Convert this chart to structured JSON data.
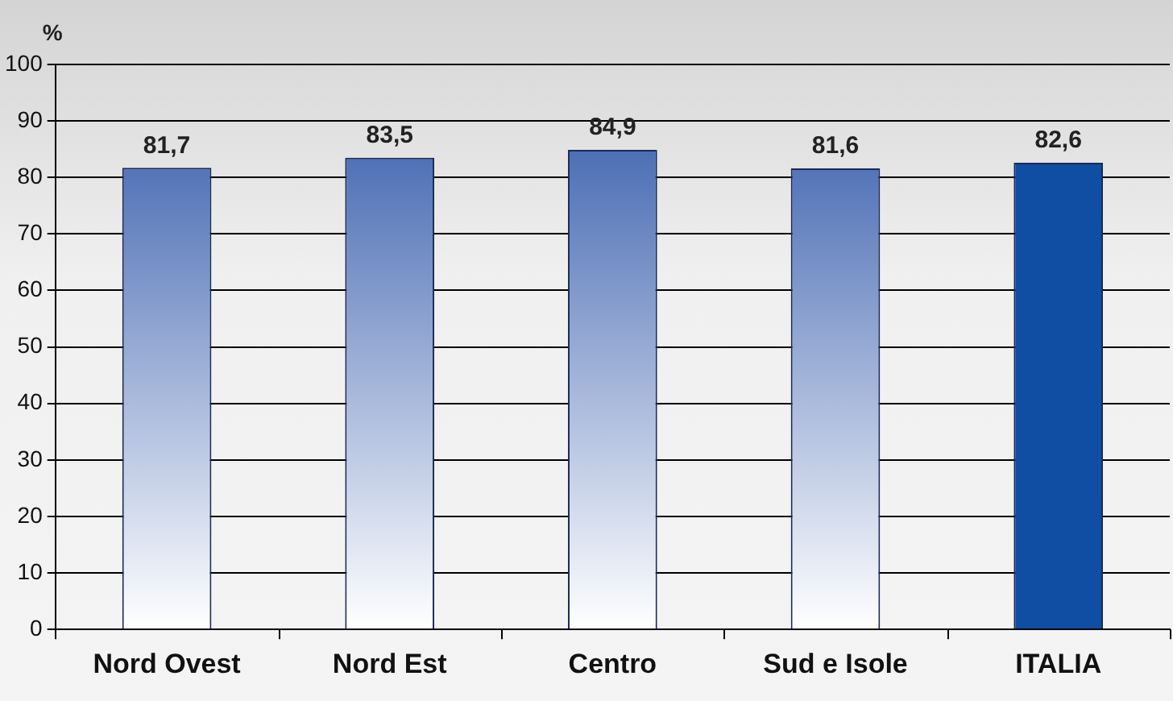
{
  "chart_data": {
    "type": "bar",
    "ylabel": "%",
    "categories": [
      "Nord Ovest",
      "Nord Est",
      "Centro",
      "Sud e Isole",
      "ITALIA"
    ],
    "values": [
      81.7,
      83.5,
      84.9,
      81.6,
      82.6
    ],
    "value_labels": [
      "81,7",
      "83,5",
      "84,9",
      "81,6",
      "82,6"
    ],
    "colors": [
      "#2d55a8",
      "#2d55a8",
      "#2d55a8",
      "#2d55a8",
      "#0f4ea3"
    ],
    "ylim": [
      0,
      100
    ],
    "yticks": [
      0,
      10,
      20,
      30,
      40,
      50,
      60,
      70,
      80,
      90,
      100
    ],
    "grid": "y",
    "legend": false
  }
}
